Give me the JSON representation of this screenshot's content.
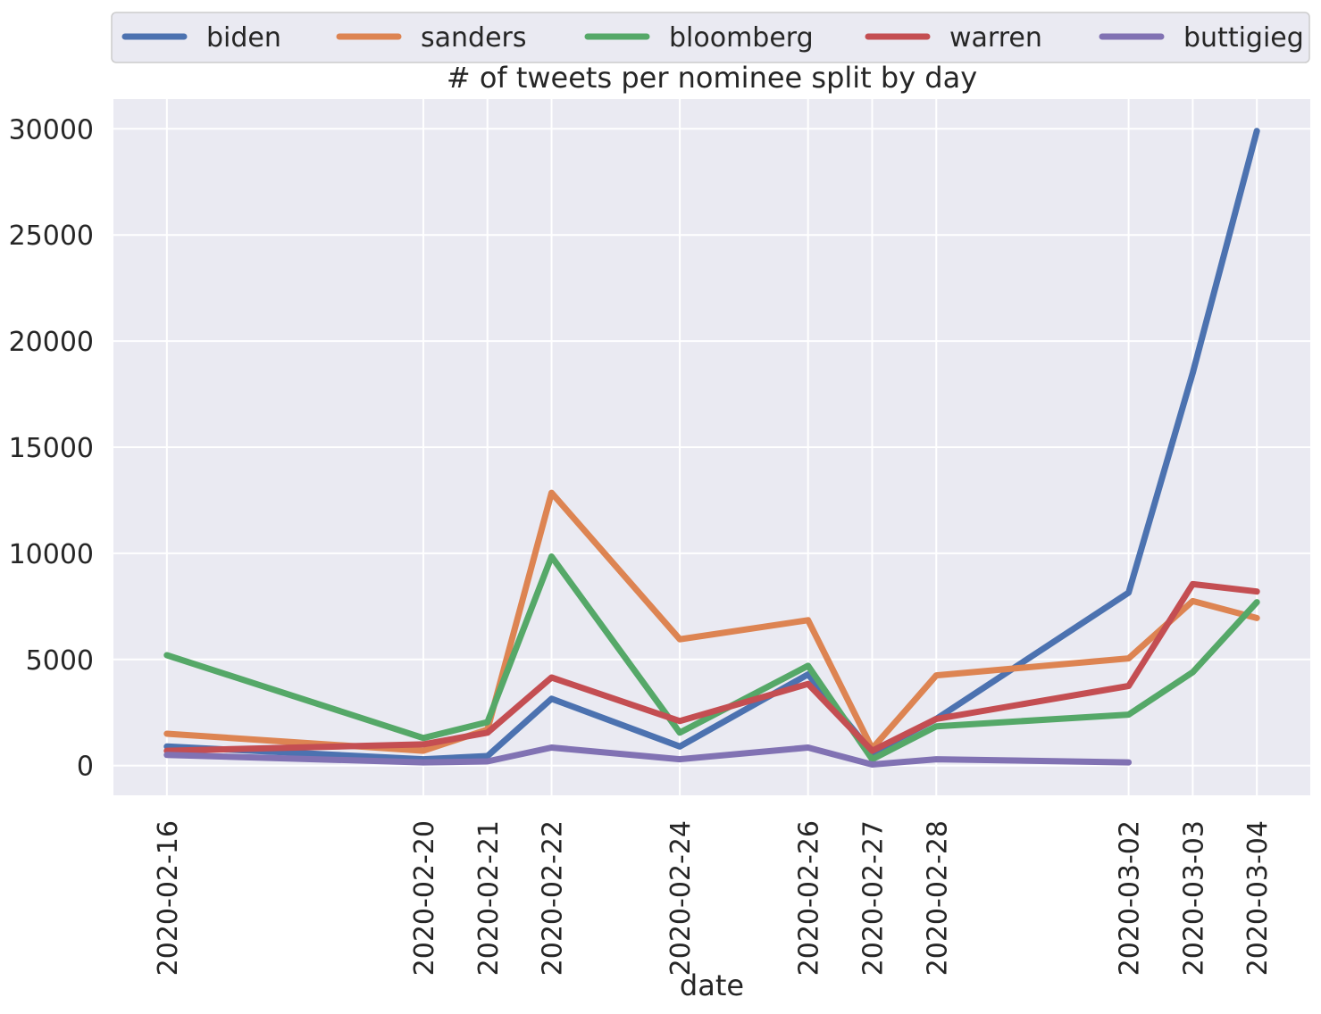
{
  "chart_data": {
    "type": "line",
    "title": "# of tweets per nominee split by day",
    "xlabel": "date",
    "ylabel": "",
    "x": [
      "2020-02-16",
      "2020-02-20",
      "2020-02-21",
      "2020-02-22",
      "2020-02-24",
      "2020-02-26",
      "2020-02-27",
      "2020-02-28",
      "2020-03-02",
      "2020-03-03",
      "2020-03-04"
    ],
    "yticks": [
      0,
      5000,
      10000,
      15000,
      20000,
      25000,
      30000
    ],
    "ylim": [
      -1400,
      31400
    ],
    "xlim": [
      "2020-02-15T04:00",
      "2020-03-04T20:00"
    ],
    "grid": true,
    "legend_position": "top",
    "background": "#eaeaf2",
    "series": [
      {
        "name": "biden",
        "color": "#4c72b0",
        "values": [
          900,
          300,
          450,
          3150,
          900,
          4300,
          600,
          2200,
          8150,
          18500,
          29900
        ]
      },
      {
        "name": "sanders",
        "color": "#dd8452",
        "values": [
          1500,
          700,
          1700,
          12850,
          5950,
          6850,
          800,
          4250,
          5050,
          7750,
          6950
        ]
      },
      {
        "name": "bloomberg",
        "color": "#55a868",
        "values": [
          5200,
          1300,
          2050,
          9850,
          1550,
          4700,
          300,
          1850,
          2400,
          4400,
          7700
        ]
      },
      {
        "name": "warren",
        "color": "#c44e52",
        "values": [
          700,
          1000,
          1550,
          4150,
          2100,
          3850,
          700,
          2200,
          3750,
          8550,
          8200
        ]
      },
      {
        "name": "buttigieg",
        "color": "#8172b3",
        "values": [
          500,
          150,
          200,
          850,
          300,
          850,
          50,
          300,
          150,
          null,
          null
        ]
      }
    ]
  }
}
